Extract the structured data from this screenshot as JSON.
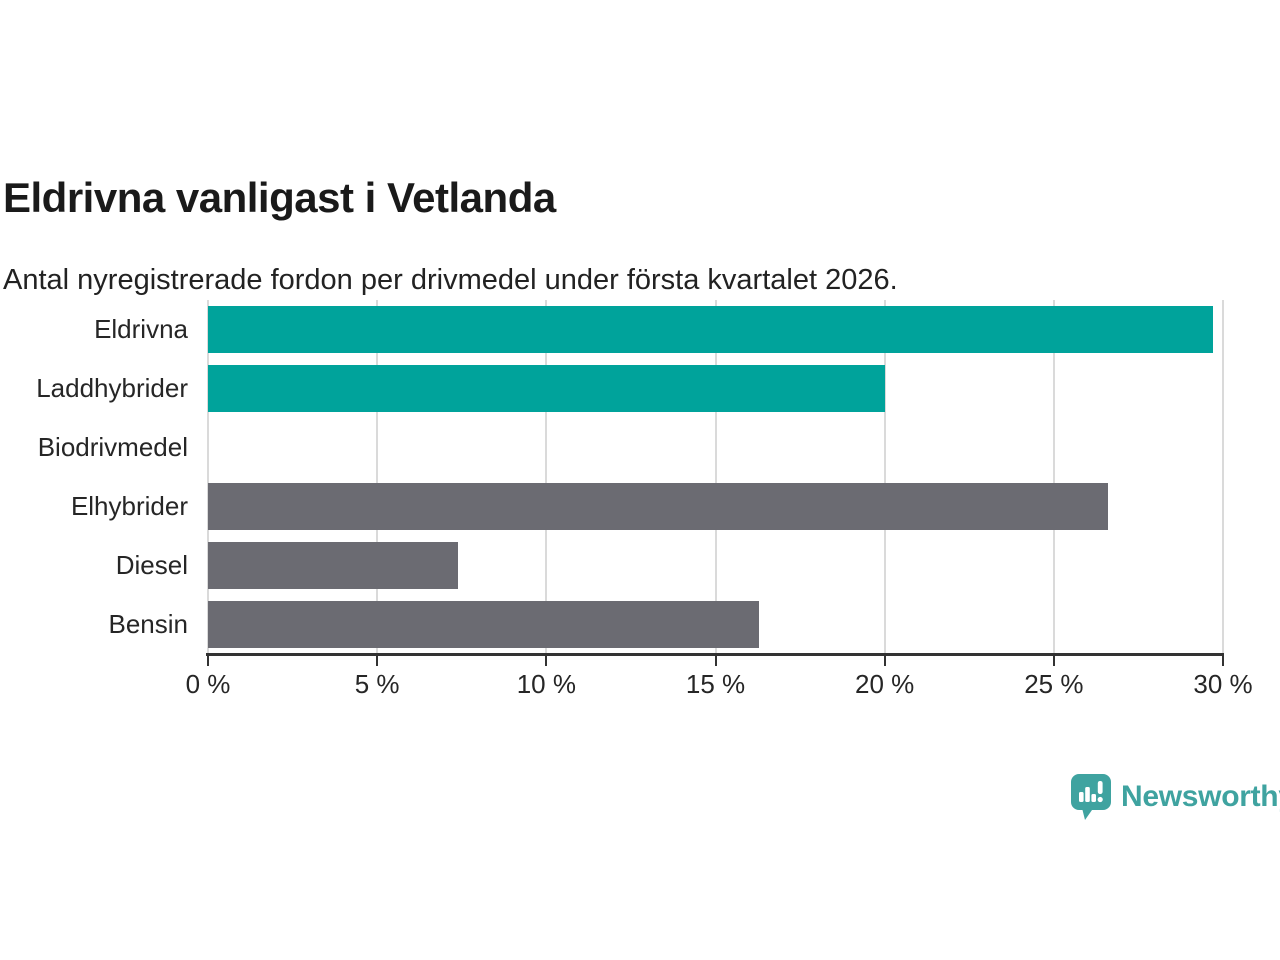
{
  "chart_data": {
    "type": "bar",
    "orientation": "horizontal",
    "title": "Eldrivna vanligast i Vetlanda",
    "subtitle": "Antal nyregistrerade fordon per drivmedel under första kvartalet 2026.",
    "categories": [
      "Eldrivna",
      "Laddhybrider",
      "Biodrivmedel",
      "Elhybrider",
      "Diesel",
      "Bensin"
    ],
    "values": [
      29.7,
      20,
      0,
      26.6,
      7.4,
      16.3
    ],
    "unit": "%",
    "xlim": [
      0,
      30
    ],
    "x_tick_values": [
      0,
      5,
      10,
      15,
      20,
      25,
      30
    ],
    "x_tick_labels": [
      "0 %",
      "5 %",
      "10 %",
      "15 %",
      "20 %",
      "25 %",
      "30 %"
    ],
    "grid": "vertical-gridlines-on",
    "legend": "none",
    "bar_colors": [
      "#00a39b",
      "#00a39b",
      "#6b6b72",
      "#6b6b72",
      "#6b6b72",
      "#6b6b72"
    ]
  },
  "colors": {
    "highlight_teal": "#00a39b",
    "neutral_gray": "#6b6b72",
    "gridline": "#dadada",
    "axis_line": "#333333",
    "text_dark": "#1a1a1a",
    "logo_teal": "#3fa3a0"
  },
  "branding": {
    "logo_text": "Newsworthy",
    "logo_icon": "newsworthy-speech-bubble-bar-chart-icon"
  }
}
